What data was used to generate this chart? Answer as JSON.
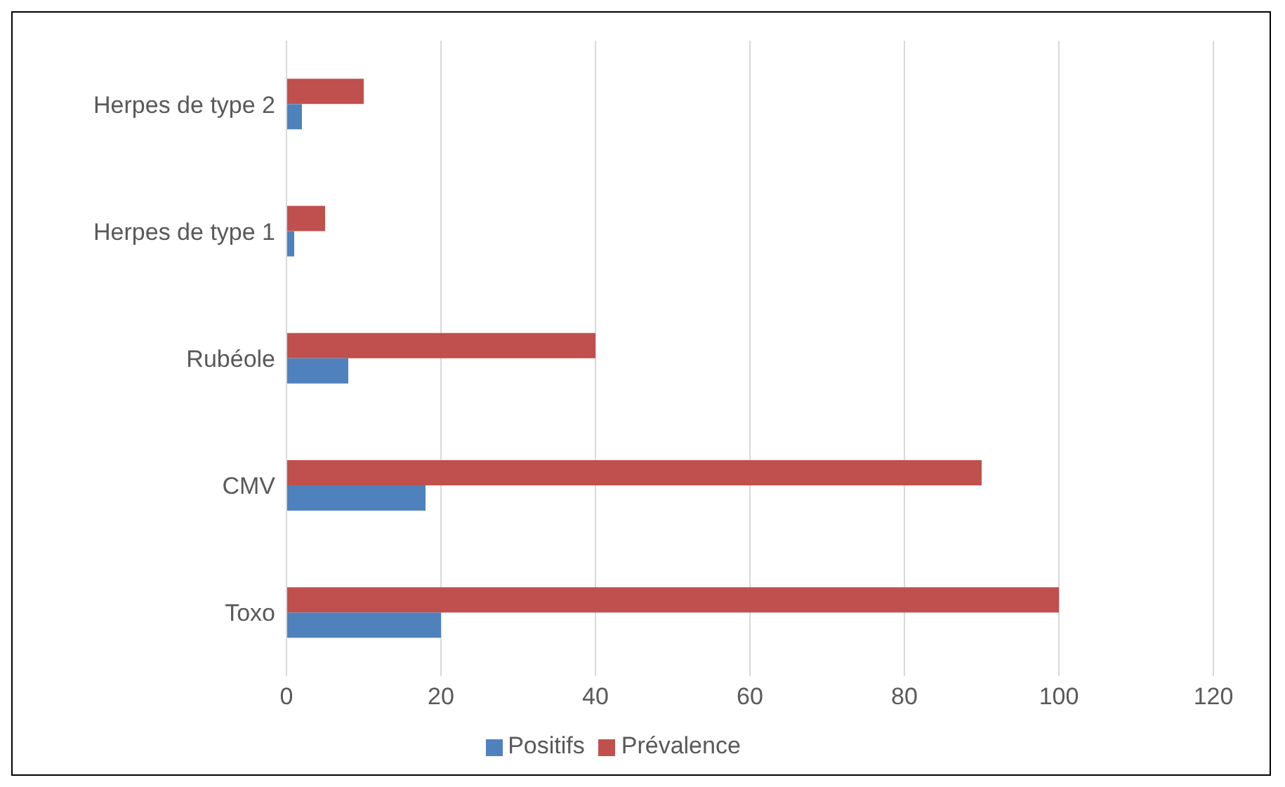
{
  "chart_data": {
    "type": "bar",
    "orientation": "horizontal",
    "categories": [
      "Herpes de type 2",
      "Herpes de type 1",
      "Rubéole",
      "CMV",
      "Toxo"
    ],
    "series": [
      {
        "name": "Prévalence",
        "color": "#c0504d",
        "values": [
          10,
          5,
          40,
          90,
          100
        ]
      },
      {
        "name": "Positifs",
        "color": "#4f81bd",
        "values": [
          2,
          1,
          8,
          18,
          20
        ]
      }
    ],
    "xlim": [
      0,
      120
    ],
    "xticks": [
      0,
      20,
      40,
      60,
      80,
      100,
      120
    ],
    "grid": "x",
    "legend": "bottom"
  }
}
